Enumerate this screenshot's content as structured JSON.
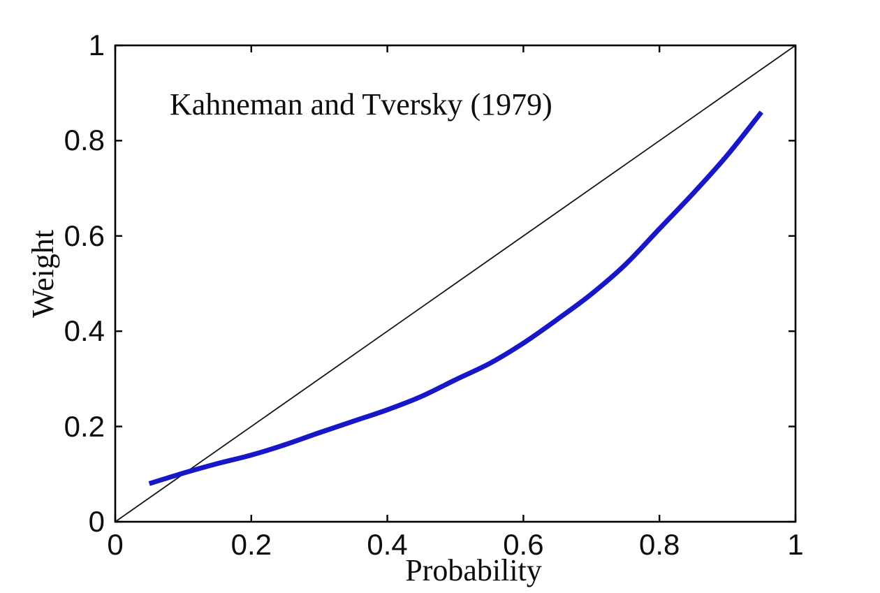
{
  "chart_data": {
    "type": "line",
    "annotation": "Kahneman and Tversky (1979)",
    "xlabel": "Probability",
    "ylabel": "Weight",
    "xlim": [
      0,
      1
    ],
    "ylim": [
      0,
      1
    ],
    "grid": false,
    "legend": "none",
    "x_ticks": {
      "values": [
        0,
        0.2,
        0.4,
        0.6,
        0.8,
        1
      ],
      "labels": [
        "0",
        "0.2",
        "0.4",
        "0.6",
        "0.8",
        "1"
      ]
    },
    "y_ticks": {
      "values": [
        0,
        0.2,
        0.4,
        0.6,
        0.8,
        1
      ],
      "labels": [
        "0",
        "0.2",
        "0.4",
        "0.6",
        "0.8",
        "1"
      ]
    },
    "series": [
      {
        "name": "identity-line",
        "description": "45-degree reference line, weight = probability",
        "color": "#141414",
        "line_width": 1.8,
        "x": [
          0,
          1
        ],
        "y": [
          0,
          1
        ]
      },
      {
        "name": "probability-weighting-curve",
        "description": "Kahneman-Tversky (1979) probability weighting function",
        "color": "#1717c8",
        "line_width": 7,
        "x": [
          0.05,
          0.1,
          0.15,
          0.2,
          0.25,
          0.3,
          0.35,
          0.4,
          0.45,
          0.5,
          0.55,
          0.6,
          0.65,
          0.7,
          0.75,
          0.8,
          0.85,
          0.9,
          0.95
        ],
        "y": [
          0.08,
          0.102,
          0.122,
          0.14,
          0.162,
          0.187,
          0.211,
          0.235,
          0.263,
          0.298,
          0.332,
          0.375,
          0.425,
          0.478,
          0.54,
          0.615,
          0.69,
          0.77,
          0.86
        ]
      }
    ]
  },
  "colors": {
    "background": "#ffffff",
    "axis": "#000000",
    "curve": "#1717c8",
    "identity": "#141414"
  }
}
